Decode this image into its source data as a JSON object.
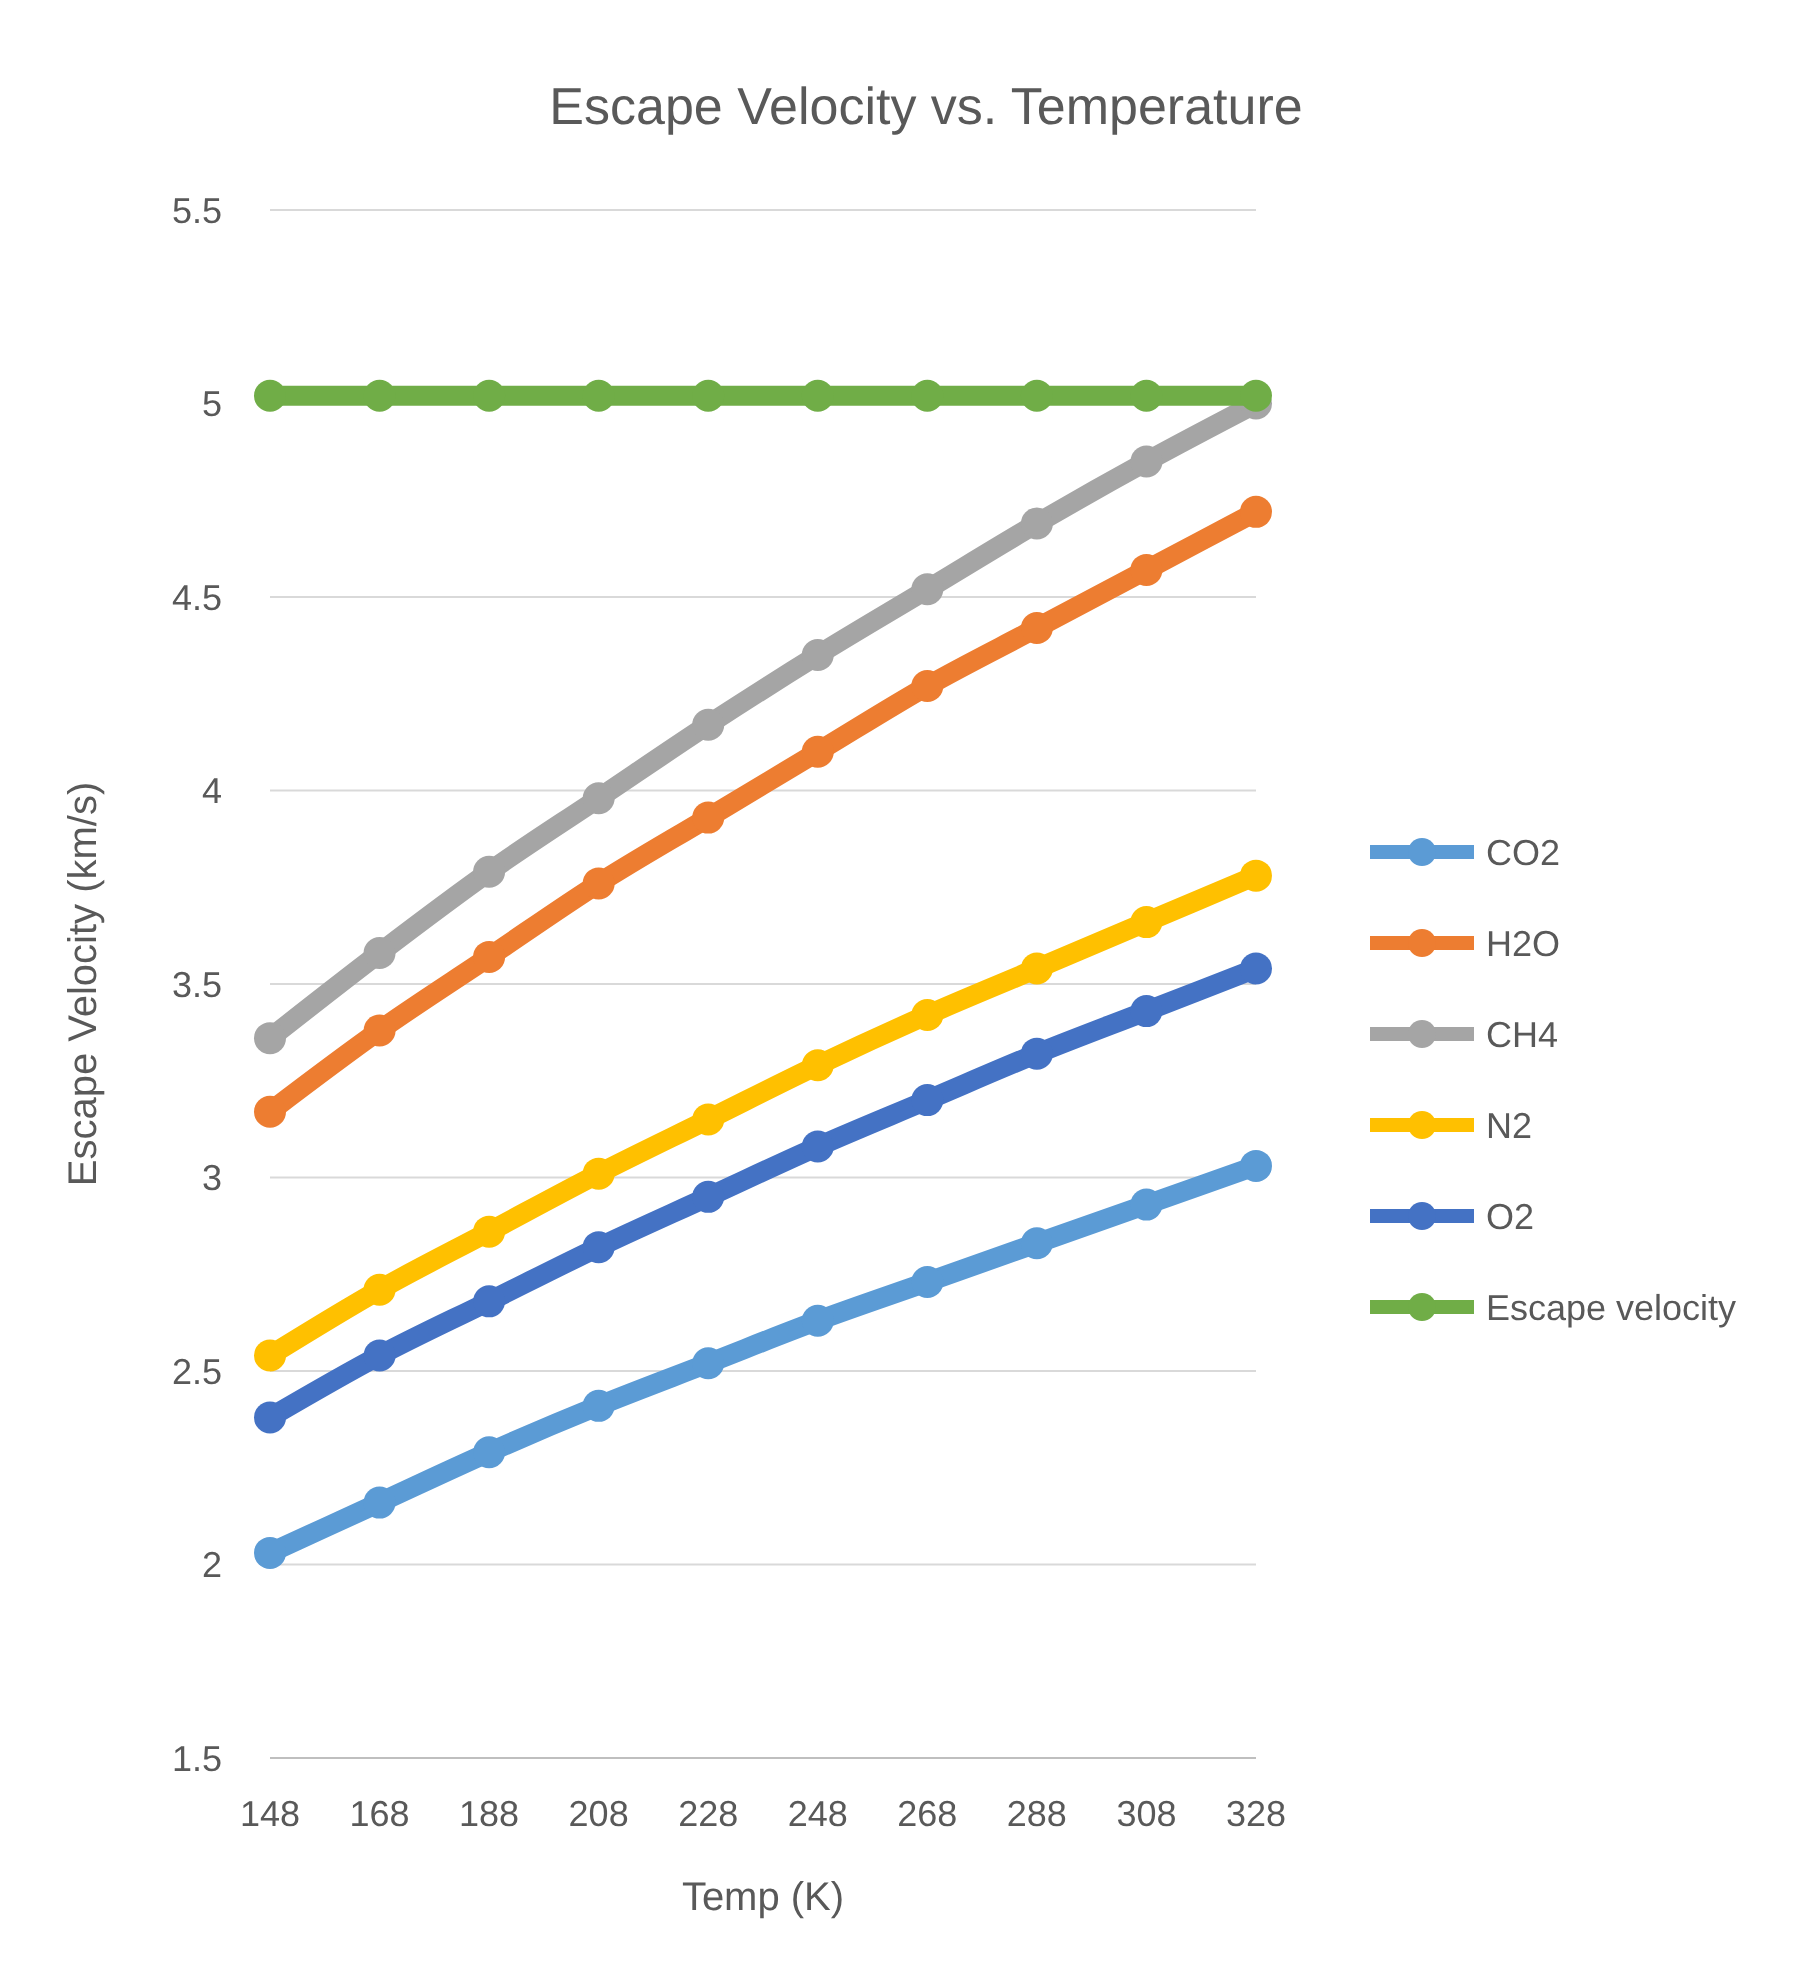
{
  "chart_data": {
    "type": "line",
    "title": "Escape Velocity vs. Temperature",
    "xlabel": "Temp (K)",
    "ylabel": "Escape Velocity (km/s)",
    "x": [
      148,
      168,
      188,
      208,
      228,
      248,
      268,
      288,
      308,
      328
    ],
    "xlim": [
      148,
      328
    ],
    "xticks": [
      148,
      168,
      188,
      208,
      228,
      248,
      268,
      288,
      308,
      328
    ],
    "ylim": [
      1.5,
      5.5
    ],
    "yticks": [
      1.5,
      2,
      2.5,
      3,
      3.5,
      4,
      4.5,
      5,
      5.5
    ],
    "grid": "y",
    "legend": "right",
    "marker": "circle",
    "line_style": "solid",
    "series": [
      {
        "name": "CO2",
        "color": "#5b9bd5",
        "values": [
          2.03,
          2.16,
          2.29,
          2.41,
          2.52,
          2.63,
          2.73,
          2.83,
          2.93,
          3.03
        ]
      },
      {
        "name": "H2O",
        "color": "#ed7d31",
        "values": [
          3.17,
          3.38,
          3.57,
          3.76,
          3.93,
          4.1,
          4.27,
          4.42,
          4.57,
          4.72
        ]
      },
      {
        "name": "CH4",
        "color": "#a5a5a5",
        "values": [
          3.36,
          3.58,
          3.79,
          3.98,
          4.17,
          4.35,
          4.52,
          4.69,
          4.85,
          5.0
        ]
      },
      {
        "name": "N2",
        "color": "#ffc000",
        "values": [
          2.54,
          2.71,
          2.86,
          3.01,
          3.15,
          3.29,
          3.42,
          3.54,
          3.66,
          3.78
        ]
      },
      {
        "name": "O2",
        "color": "#4472c4",
        "values": [
          2.38,
          2.54,
          2.68,
          2.82,
          2.95,
          3.08,
          3.2,
          3.32,
          3.43,
          3.54
        ]
      },
      {
        "name": "Escape velocity",
        "color": "#70ad47",
        "values": [
          5.02,
          5.02,
          5.02,
          5.02,
          5.02,
          5.02,
          5.02,
          5.02,
          5.02,
          5.02
        ]
      }
    ]
  }
}
